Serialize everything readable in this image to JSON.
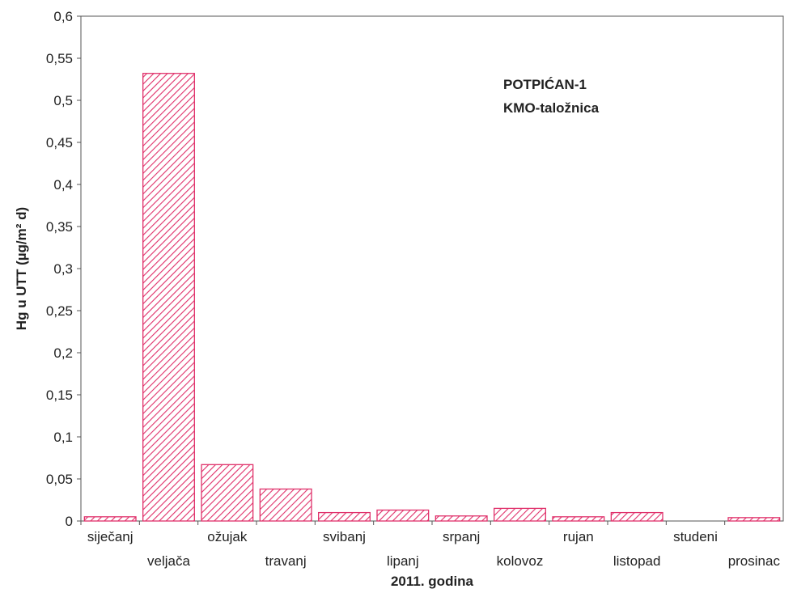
{
  "chart_data": {
    "type": "bar",
    "annotation_lines": [
      "POTPIĆAN-1",
      "KMO-taložnica"
    ],
    "xlabel": "2011. godina",
    "ylabel": "Hg u UTT (µg/m² d)",
    "categories": [
      "siječanj",
      "veljača",
      "ožujak",
      "travanj",
      "svibanj",
      "lipanj",
      "srpanj",
      "kolovoz",
      "rujan",
      "listopad",
      "studeni",
      "prosinac"
    ],
    "values": [
      0.005,
      0.532,
      0.067,
      0.038,
      0.01,
      0.013,
      0.006,
      0.015,
      0.005,
      0.01,
      0.0,
      0.004
    ],
    "ylim": [
      0,
      0.6
    ],
    "yticks": [
      0,
      0.05,
      0.1,
      0.15,
      0.2,
      0.25,
      0.3,
      0.35,
      0.4,
      0.45,
      0.5,
      0.55,
      0.6
    ],
    "ytick_labels": [
      "0",
      "0,05",
      "0,1",
      "0,15",
      "0,2",
      "0,25",
      "0,3",
      "0,35",
      "0,4",
      "0,45",
      "0,5",
      "0,55",
      "0,6"
    ],
    "grid": false,
    "bar_color": "#e0306a",
    "bar_fill": "diagonal-hatch"
  }
}
